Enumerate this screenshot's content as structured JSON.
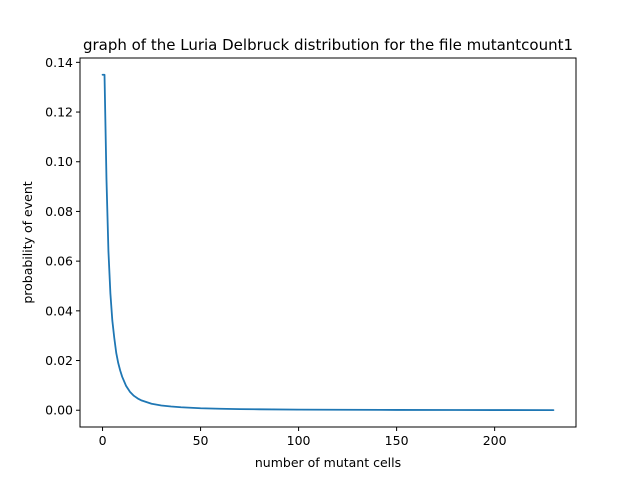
{
  "chart_data": {
    "type": "line",
    "title": "graph of the Luria Delbruck distribution for the file mutantcount1",
    "xlabel": "number of mutant cells",
    "ylabel": "probability of event",
    "xlim": [
      -11.5,
      241.5
    ],
    "ylim": [
      -0.00675,
      0.14175
    ],
    "x_ticks": [
      0,
      50,
      100,
      150,
      200
    ],
    "x_tick_labels": [
      "0",
      "50",
      "100",
      "150",
      "200"
    ],
    "y_ticks": [
      0.0,
      0.02,
      0.04,
      0.06,
      0.08,
      0.1,
      0.12,
      0.14
    ],
    "y_tick_labels": [
      "0.00",
      "0.02",
      "0.04",
      "0.06",
      "0.08",
      "0.10",
      "0.12",
      "0.14"
    ],
    "grid": false,
    "series": [
      {
        "color": "#1f77b4",
        "x": [
          0,
          1,
          2,
          3,
          4,
          5,
          6,
          7,
          8,
          9,
          10,
          12,
          14,
          16,
          18,
          20,
          25,
          30,
          35,
          40,
          50,
          60,
          70,
          80,
          100,
          120,
          150,
          180,
          200,
          230
        ],
        "y": [
          0.135,
          0.135,
          0.093,
          0.064,
          0.047,
          0.036,
          0.029,
          0.023,
          0.019,
          0.016,
          0.0135,
          0.0098,
          0.0074,
          0.0058,
          0.0047,
          0.0039,
          0.0026,
          0.0019,
          0.0015,
          0.0012,
          0.0008,
          0.0006,
          0.00045,
          0.00036,
          0.00025,
          0.00018,
          0.00012,
          9e-05,
          7e-05,
          5e-05
        ]
      }
    ]
  }
}
